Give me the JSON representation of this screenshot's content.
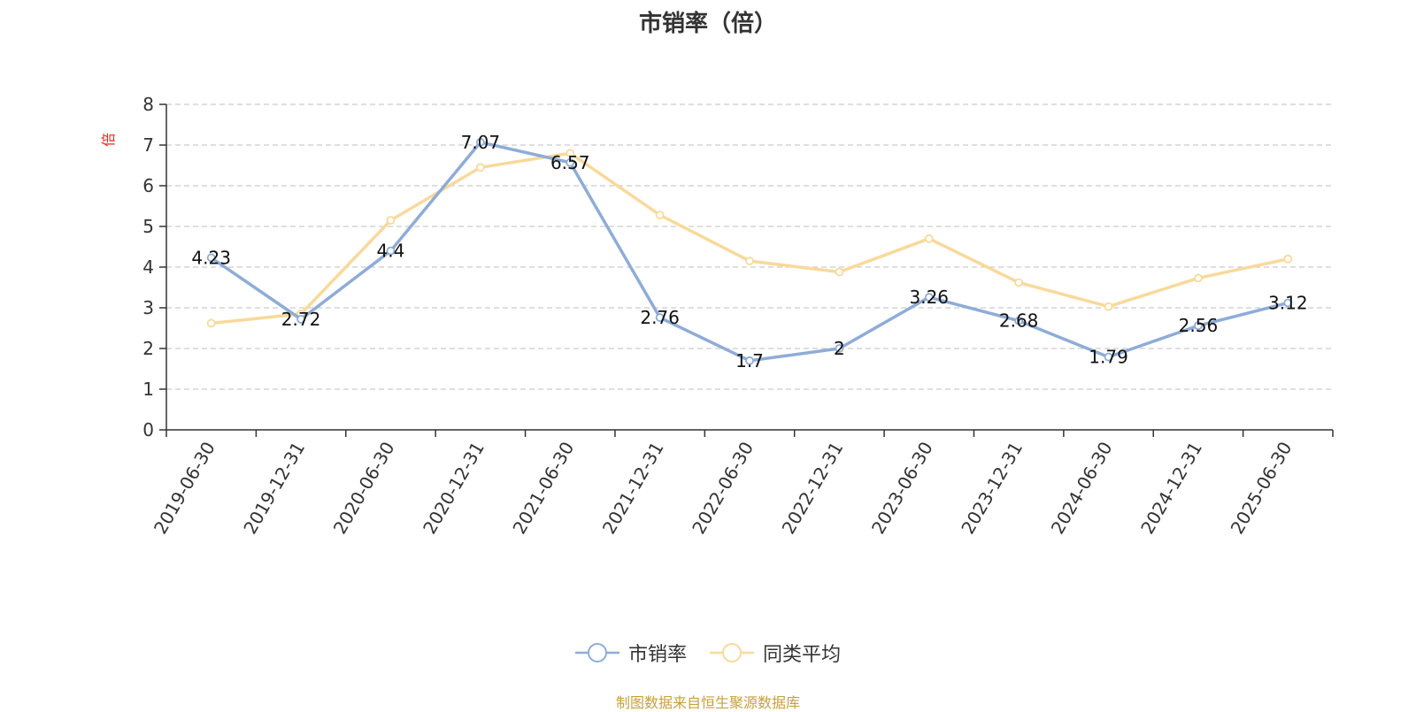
{
  "chart_data": {
    "type": "line",
    "title": "市销率（倍）",
    "ylabel": "倍",
    "xlabel": "",
    "ylim": [
      0,
      8
    ],
    "yticks": [
      0,
      1,
      2,
      3,
      4,
      5,
      6,
      7,
      8
    ],
    "grid": true,
    "legend_position": "bottom",
    "categories": [
      "2019-06-30",
      "2019-12-31",
      "2020-06-30",
      "2020-12-31",
      "2021-06-30",
      "2021-12-31",
      "2022-06-30",
      "2022-12-31",
      "2023-06-30",
      "2023-12-31",
      "2024-06-30",
      "2024-12-31",
      "2025-06-30"
    ],
    "series": [
      {
        "name": "市销率",
        "color": "#8eacd8",
        "values": [
          4.23,
          2.72,
          4.4,
          7.07,
          6.57,
          2.76,
          1.7,
          2,
          3.26,
          2.68,
          1.79,
          2.56,
          3.12
        ],
        "labels": [
          "4.23",
          "2.72",
          "4.4",
          "7.07",
          "6.57",
          "2.76",
          "1.7",
          "2",
          "3.26",
          "2.68",
          "1.79",
          "2.56",
          "3.12"
        ]
      },
      {
        "name": "同类平均",
        "color": "#f9d99a",
        "values": [
          2.62,
          2.85,
          5.15,
          6.45,
          6.8,
          5.28,
          4.15,
          3.88,
          4.7,
          3.62,
          3.03,
          3.73,
          4.2
        ]
      }
    ]
  },
  "source_note": "制图数据来自恒生聚源数据库"
}
